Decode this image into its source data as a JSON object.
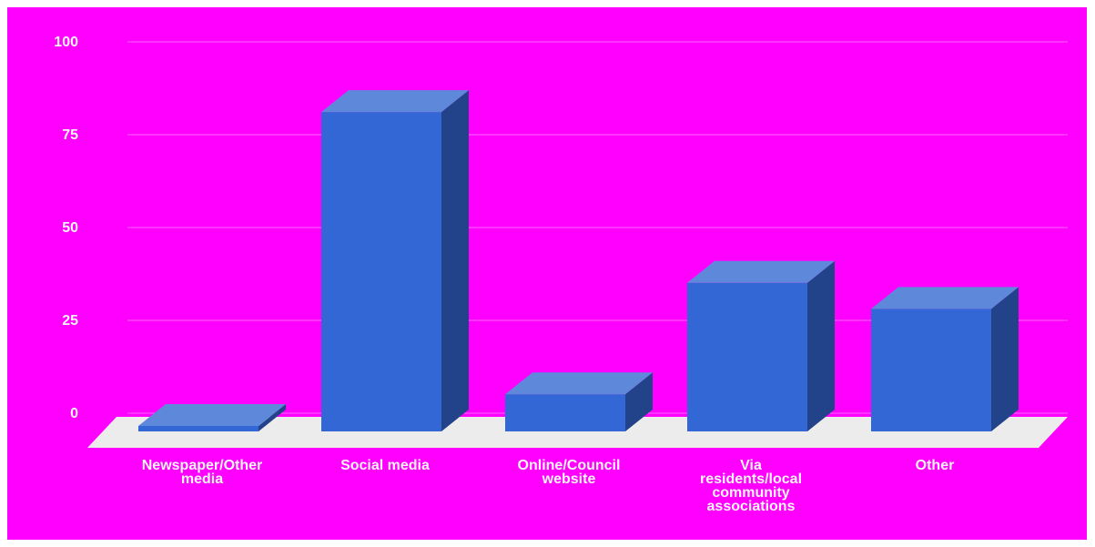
{
  "chart_data": {
    "type": "bar",
    "style": "3d-column",
    "categories": [
      "Newspaper/Other media",
      "Social media",
      "Online/Council website",
      "Via residents/local community associations",
      "Other"
    ],
    "category_label_lines": [
      [
        "Newspaper/Other",
        "media"
      ],
      [
        "Social media"
      ],
      [
        "Online/Council",
        "website"
      ],
      [
        "Via",
        "residents/local",
        "community",
        "associations"
      ],
      [
        "Other"
      ]
    ],
    "values": [
      1,
      86,
      10,
      40,
      33
    ],
    "yticks": [
      "0",
      "25",
      "50",
      "75",
      "100"
    ],
    "ylim": [
      0,
      100
    ],
    "grid": true,
    "legend": "none"
  },
  "colors": {
    "background": "#ff00ff",
    "bar_front": "#3367d6",
    "bar_top": "#5e89db",
    "bar_side": "#22428a",
    "floor": "#ececec",
    "gridline": "#ff66ff",
    "text": "#f5f5f5"
  }
}
